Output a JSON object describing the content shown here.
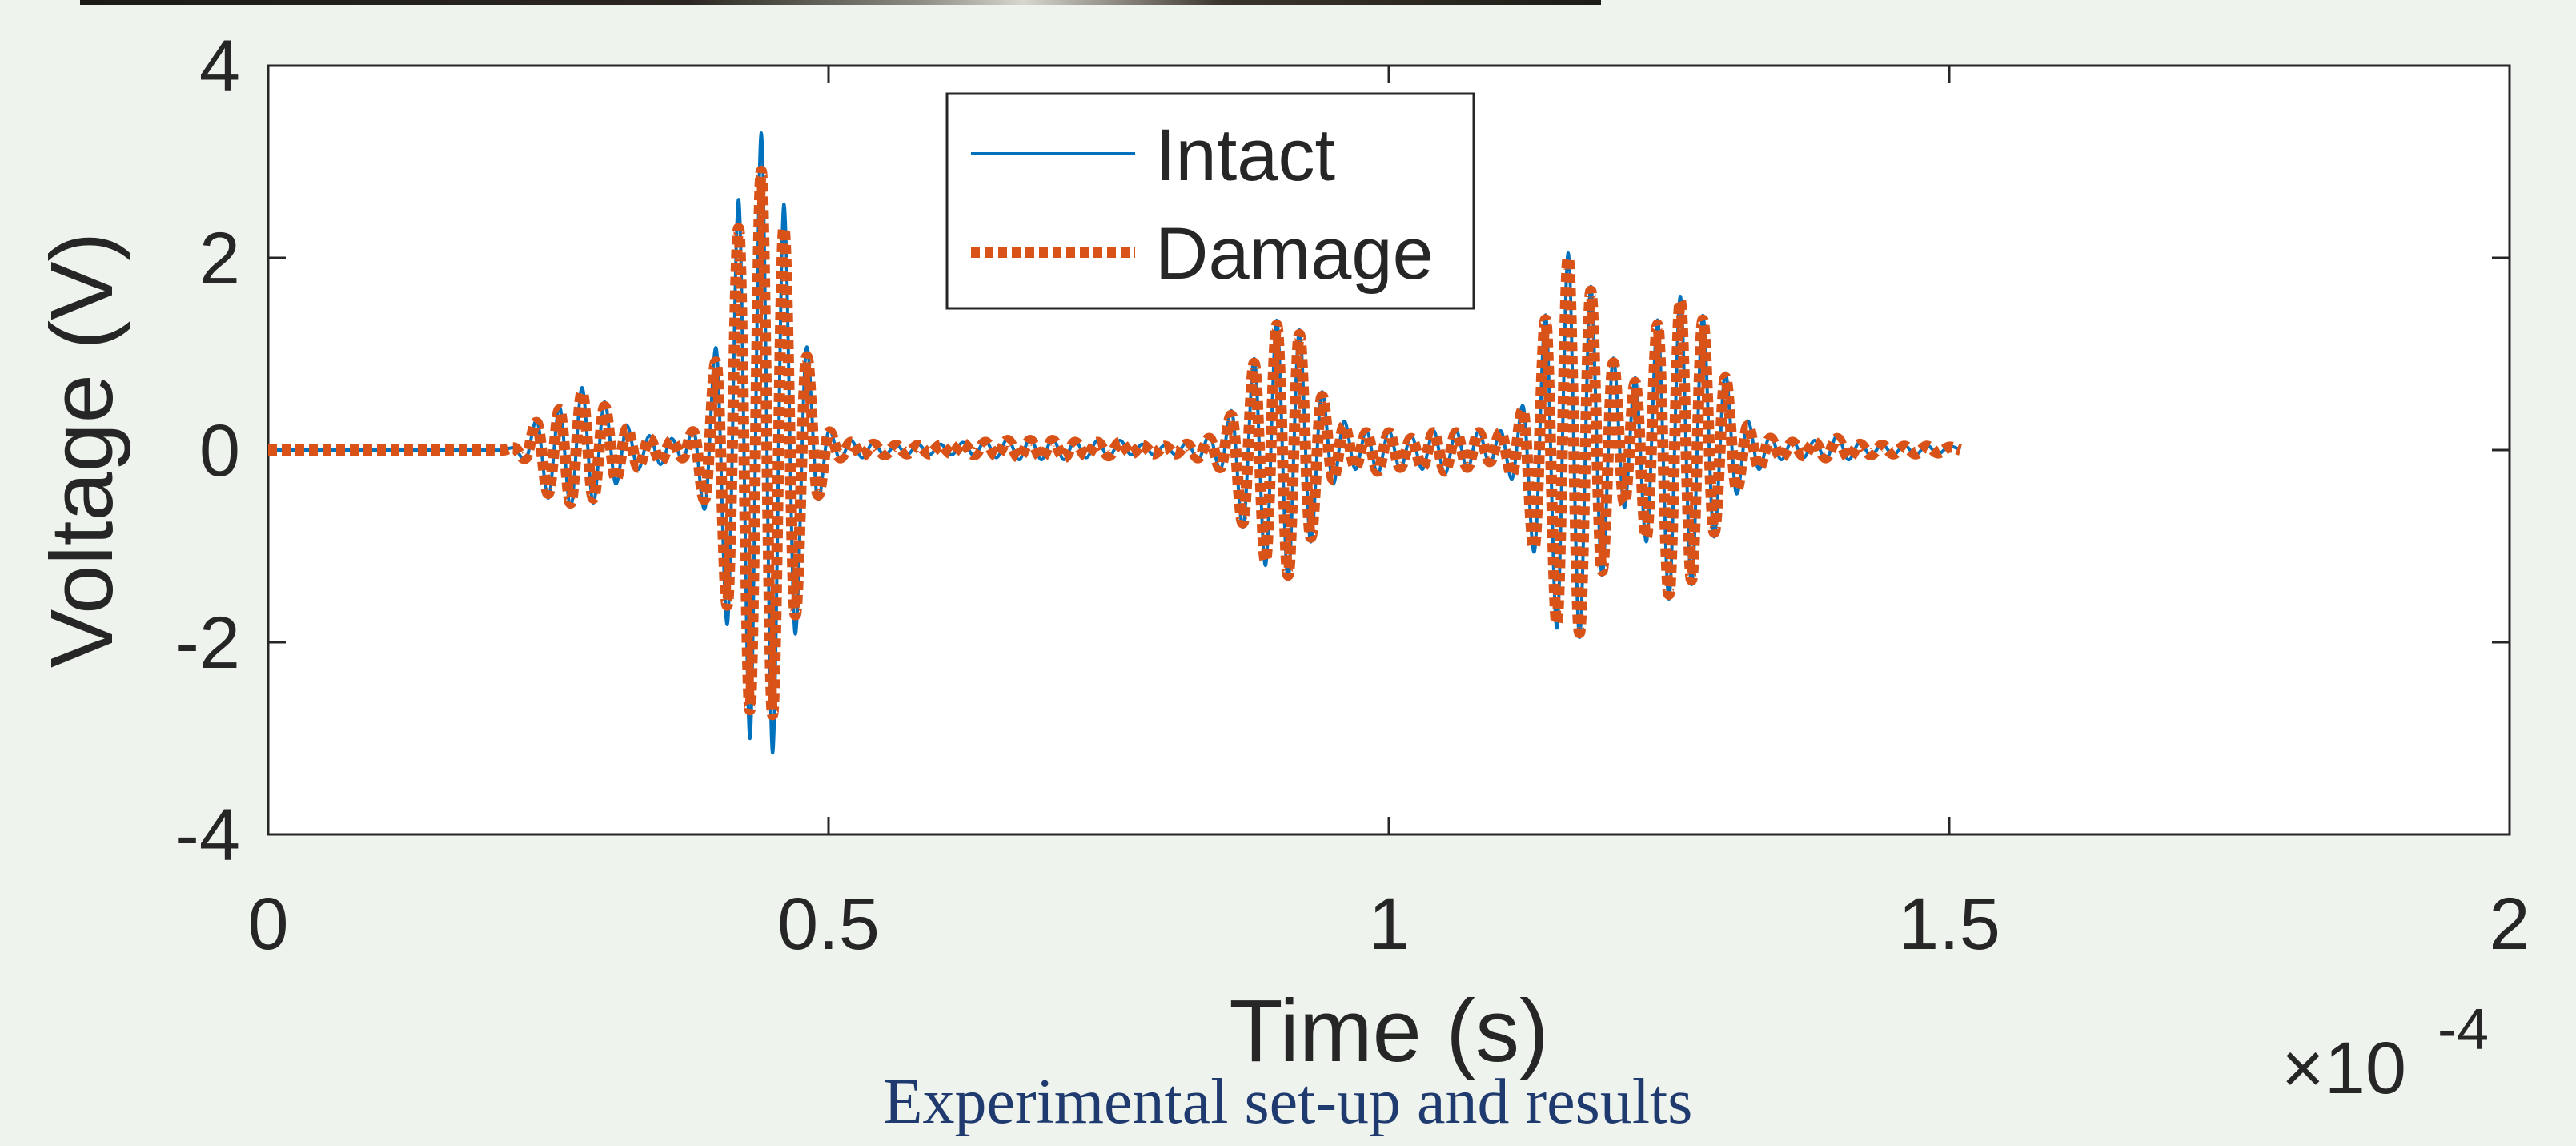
{
  "caption": "Experimental set-up and results",
  "chart_data": {
    "type": "line",
    "xlabel": "Time (s)",
    "ylabel": "Voltage (V)",
    "x_multiplier_label": "×10",
    "x_multiplier_exponent": "-4",
    "xlim": [
      0,
      2
    ],
    "ylim": [
      -4,
      4
    ],
    "x_ticks": [
      0,
      0.5,
      1,
      1.5,
      2
    ],
    "x_tick_labels": [
      "0",
      "0.5",
      "1",
      "1.5",
      "2"
    ],
    "y_ticks": [
      -4,
      -2,
      0,
      2,
      4
    ],
    "y_tick_labels": [
      "-4",
      "-2",
      "0",
      "2",
      "4"
    ],
    "grid": false,
    "legend_position": "top-center",
    "series": [
      {
        "name": "Intact",
        "color": "#0072bd",
        "style": "solid",
        "sample_step": 0.01,
        "y": [
          0,
          0,
          0,
          0,
          0,
          0,
          0,
          0,
          0,
          0,
          0,
          0,
          0,
          0,
          0,
          0,
          0,
          0,
          0,
          0,
          0,
          0,
          0.02,
          -0.1,
          0.3,
          -0.5,
          0.45,
          -0.6,
          0.65,
          -0.55,
          0.5,
          -0.35,
          0.25,
          -0.2,
          0.15,
          -0.15,
          0.12,
          -0.1,
          0.2,
          -0.6,
          1.05,
          -1.8,
          2.6,
          -3.0,
          3.3,
          -3.15,
          2.55,
          -1.9,
          1.05,
          -0.5,
          0.2,
          -0.1,
          0.1,
          -0.08,
          0.08,
          -0.06,
          0.06,
          -0.05,
          0.06,
          -0.05,
          0.06,
          -0.05,
          0.08,
          -0.06,
          0.1,
          -0.08,
          0.12,
          -0.1,
          0.12,
          -0.1,
          0.12,
          -0.1,
          0.1,
          -0.08,
          0.1,
          -0.08,
          0.1,
          -0.05,
          0.06,
          -0.05,
          0.05,
          -0.05,
          0.08,
          -0.1,
          0.15,
          -0.2,
          0.4,
          -0.8,
          0.95,
          -1.2,
          1.35,
          -1.35,
          1.25,
          -0.95,
          0.6,
          -0.35,
          0.3,
          -0.2,
          0.2,
          -0.25,
          0.2,
          -0.2,
          0.15,
          -0.2,
          0.2,
          -0.25,
          0.2,
          -0.2,
          0.2,
          -0.15,
          0.2,
          -0.3,
          0.45,
          -1.05,
          1.4,
          -1.85,
          2.05,
          -1.95,
          1.7,
          -1.3,
          0.95,
          -0.6,
          0.75,
          -0.95,
          1.35,
          -1.55,
          1.6,
          -1.4,
          1.4,
          -0.9,
          0.8,
          -0.45,
          0.3,
          -0.2,
          0.15,
          -0.1,
          0.1,
          -0.08,
          0.1,
          -0.1,
          0.15,
          -0.1,
          0.08,
          -0.06,
          0.06,
          -0.05,
          0.05,
          -0.05,
          0.05,
          -0.04,
          0.04,
          0
        ]
      },
      {
        "name": "Damage",
        "color": "#d95319",
        "style": "dotted",
        "sample_step": 0.01,
        "y": [
          0,
          0,
          0,
          0,
          0,
          0,
          0,
          0,
          0,
          0,
          0,
          0,
          0,
          0,
          0,
          0,
          0,
          0,
          0,
          0,
          0,
          0,
          0.02,
          -0.08,
          0.28,
          -0.45,
          0.42,
          -0.55,
          0.6,
          -0.5,
          0.45,
          -0.3,
          0.22,
          -0.18,
          0.12,
          -0.12,
          0.1,
          -0.08,
          0.18,
          -0.5,
          0.9,
          -1.6,
          2.3,
          -2.7,
          2.9,
          -2.75,
          2.3,
          -1.7,
          0.95,
          -0.45,
          0.18,
          -0.08,
          0.08,
          -0.06,
          0.06,
          -0.05,
          0.05,
          -0.04,
          0.05,
          -0.04,
          0.05,
          -0.04,
          0.07,
          -0.05,
          0.08,
          -0.06,
          0.1,
          -0.08,
          0.1,
          -0.08,
          0.1,
          -0.08,
          0.08,
          -0.06,
          0.08,
          -0.06,
          0.08,
          -0.04,
          0.05,
          -0.04,
          0.04,
          -0.04,
          0.06,
          -0.08,
          0.12,
          -0.18,
          0.35,
          -0.75,
          0.9,
          -1.15,
          1.3,
          -1.3,
          1.2,
          -0.9,
          0.55,
          -0.3,
          0.25,
          -0.18,
          0.18,
          -0.22,
          0.18,
          -0.18,
          0.12,
          -0.18,
          0.18,
          -0.22,
          0.18,
          -0.18,
          0.18,
          -0.12,
          0.18,
          -0.25,
          0.4,
          -1.0,
          1.35,
          -1.8,
          2.0,
          -1.9,
          1.65,
          -1.25,
          0.9,
          -0.55,
          0.7,
          -0.9,
          1.3,
          -1.5,
          1.55,
          -1.35,
          1.35,
          -0.85,
          0.75,
          -0.4,
          0.25,
          -0.18,
          0.12,
          -0.08,
          0.08,
          -0.06,
          0.08,
          -0.08,
          0.12,
          -0.08,
          0.06,
          -0.05,
          0.05,
          -0.04,
          0.04,
          -0.04,
          0.04,
          -0.03,
          0.03,
          0
        ]
      }
    ]
  }
}
